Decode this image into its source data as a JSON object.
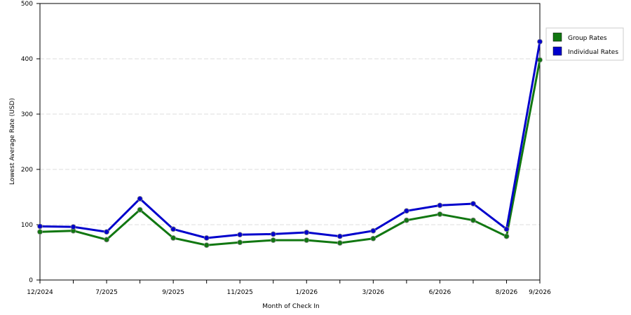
{
  "chart_data": {
    "type": "line",
    "x_label": "Month of Check In",
    "y_label": "Lowest Average Rate (USD)",
    "categories": [
      "12/2024",
      null,
      "7/2025",
      null,
      "9/2025",
      null,
      "11/2025",
      null,
      "1/2026",
      null,
      "3/2026",
      null,
      "6/2026",
      null,
      "8/2026",
      "9/2026"
    ],
    "series": [
      {
        "name": "Group Rates",
        "color": "#117711",
        "values": [
          87,
          89,
          73,
          127,
          76,
          63,
          68,
          72,
          72,
          67,
          75,
          108,
          119,
          108,
          79,
          398
        ]
      },
      {
        "name": "Individual Rates",
        "color": "#0000cc",
        "values": [
          97,
          96,
          87,
          147,
          92,
          76,
          82,
          83,
          86,
          79,
          89,
          125,
          135,
          138,
          92,
          431
        ]
      }
    ],
    "ylim": [
      0,
      500
    ],
    "yticks": [
      0,
      100,
      200,
      300,
      400,
      500
    ],
    "grid": true
  }
}
